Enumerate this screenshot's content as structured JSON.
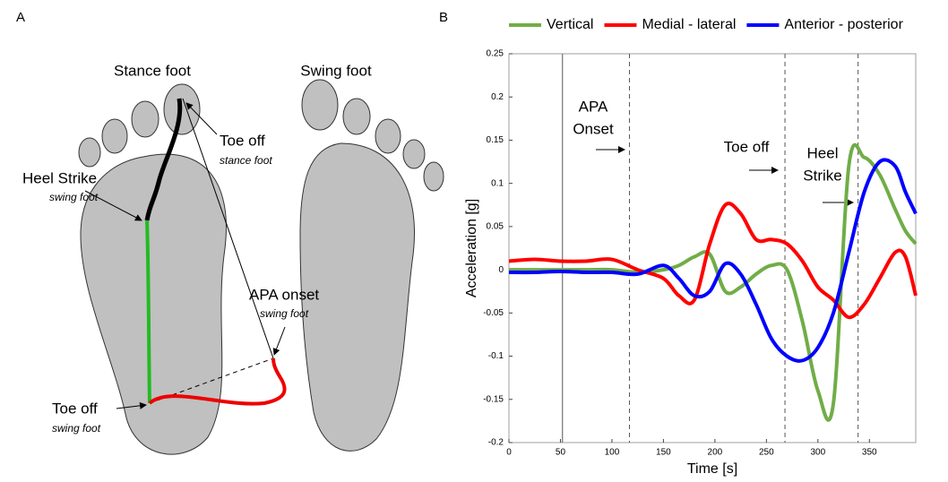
{
  "diagram": {
    "panel_label": "A",
    "stance_title": "Stance foot",
    "swing_title": "Swing foot",
    "labels": [
      {
        "main": "Toe off",
        "sub": "stance foot"
      },
      {
        "main": "Heel Strike",
        "sub": "swing foot"
      },
      {
        "main": "APA onset",
        "sub": "swing foot"
      },
      {
        "main": "Toe off",
        "sub": "swing foot"
      }
    ]
  },
  "chart_data": {
    "type": "line",
    "panel_label": "B",
    "x_label": "Time [s]",
    "y_label": "Acceleration [g]",
    "xlim": [
      0,
      395
    ],
    "xticks": [
      0,
      50,
      100,
      150,
      200,
      250,
      300,
      350
    ],
    "ylim": [
      -0.2,
      0.25
    ],
    "yticks": [
      -0.2,
      -0.15,
      -0.1,
      -0.05,
      0,
      0.05,
      0.1,
      0.15,
      0.2,
      0.25
    ],
    "legend": "top",
    "x": [
      0,
      25,
      50,
      75,
      100,
      125,
      150,
      165,
      180,
      195,
      210,
      225,
      240,
      255,
      270,
      285,
      300,
      315,
      330,
      345,
      360,
      375,
      385,
      395
    ],
    "series": [
      {
        "name": "Vertical",
        "color": "#70ad47",
        "values": [
          0,
          0,
          0,
          0,
          0,
          -0.003,
          0,
          0.005,
          0.015,
          0.018,
          -0.025,
          -0.02,
          -0.005,
          0.005,
          0,
          -0.06,
          -0.14,
          -0.155,
          0.12,
          0.13,
          0.11,
          0.07,
          0.045,
          0.03
        ]
      },
      {
        "name": "Medial - lateral",
        "color": "#ff0000",
        "values": [
          0.01,
          0.012,
          0.01,
          0.01,
          0.012,
          0,
          -0.01,
          -0.03,
          -0.035,
          0.03,
          0.075,
          0.065,
          0.035,
          0.035,
          0.03,
          0.01,
          -0.02,
          -0.035,
          -0.055,
          -0.04,
          -0.01,
          0.02,
          0.015,
          -0.03
        ]
      },
      {
        "name": "Anterior - posterior",
        "color": "#0000ff",
        "values": [
          -0.003,
          -0.003,
          -0.002,
          -0.003,
          -0.003,
          -0.005,
          0.005,
          -0.01,
          -0.03,
          -0.025,
          0.007,
          -0.005,
          -0.04,
          -0.08,
          -0.1,
          -0.105,
          -0.09,
          -0.05,
          0.02,
          0.09,
          0.125,
          0.12,
          0.09,
          0.065
        ]
      }
    ],
    "vlines": [
      {
        "x": 52,
        "style": "solid"
      },
      {
        "x": 117,
        "style": "dashed"
      },
      {
        "x": 268,
        "style": "dashed"
      },
      {
        "x": 339,
        "style": "dashed"
      }
    ],
    "annotations": [
      {
        "lines": [
          "APA",
          "Onset"
        ]
      },
      {
        "lines": [
          "Toe off"
        ]
      },
      {
        "lines": [
          "Heel",
          "Strike"
        ]
      }
    ]
  }
}
